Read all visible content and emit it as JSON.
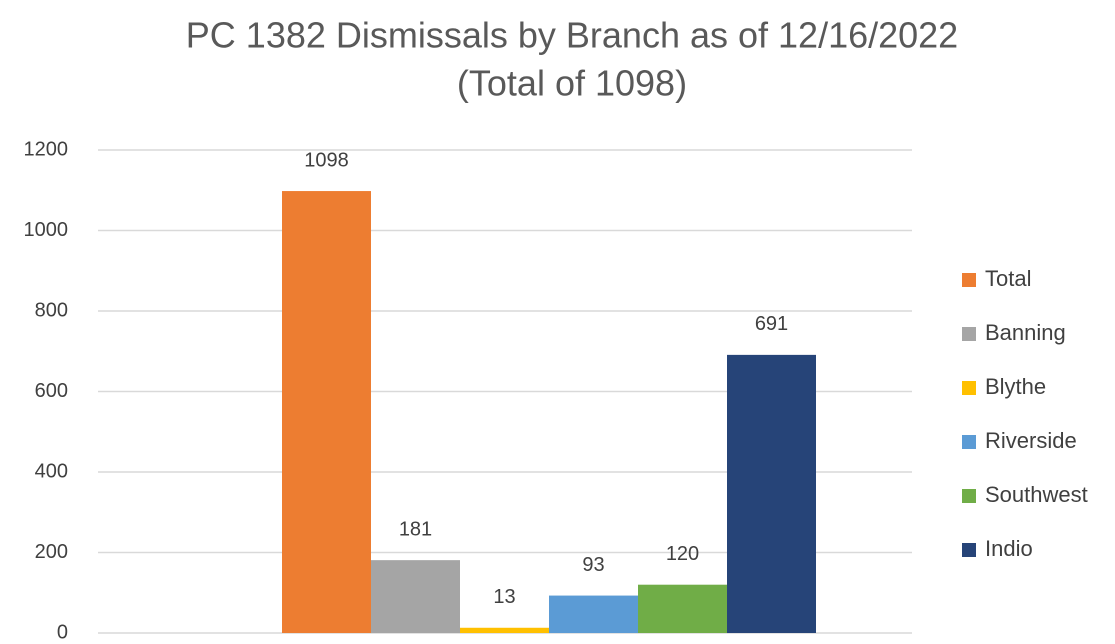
{
  "chart_data": {
    "type": "bar",
    "title": [
      "PC 1382 Dismissals by Branch as of 12/16/2022",
      "(Total of 1098)"
    ],
    "categories": [
      null
    ],
    "series": [
      {
        "name": "Total",
        "color": "#ed7d31",
        "values": [
          1098
        ]
      },
      {
        "name": "Banning",
        "color": "#a5a5a5",
        "values": [
          181
        ]
      },
      {
        "name": "Blythe",
        "color": "#ffc000",
        "values": [
          13
        ]
      },
      {
        "name": "Riverside",
        "color": "#5b9bd5",
        "values": [
          93
        ]
      },
      {
        "name": "Southwest",
        "color": "#70ad47",
        "values": [
          120
        ]
      },
      {
        "name": "Indio",
        "color": "#264478",
        "values": [
          691
        ]
      }
    ],
    "ylim": [
      0,
      1200
    ],
    "yticks": [
      0,
      200,
      400,
      600,
      800,
      1000,
      1200
    ],
    "grid": true,
    "legend": "right"
  }
}
